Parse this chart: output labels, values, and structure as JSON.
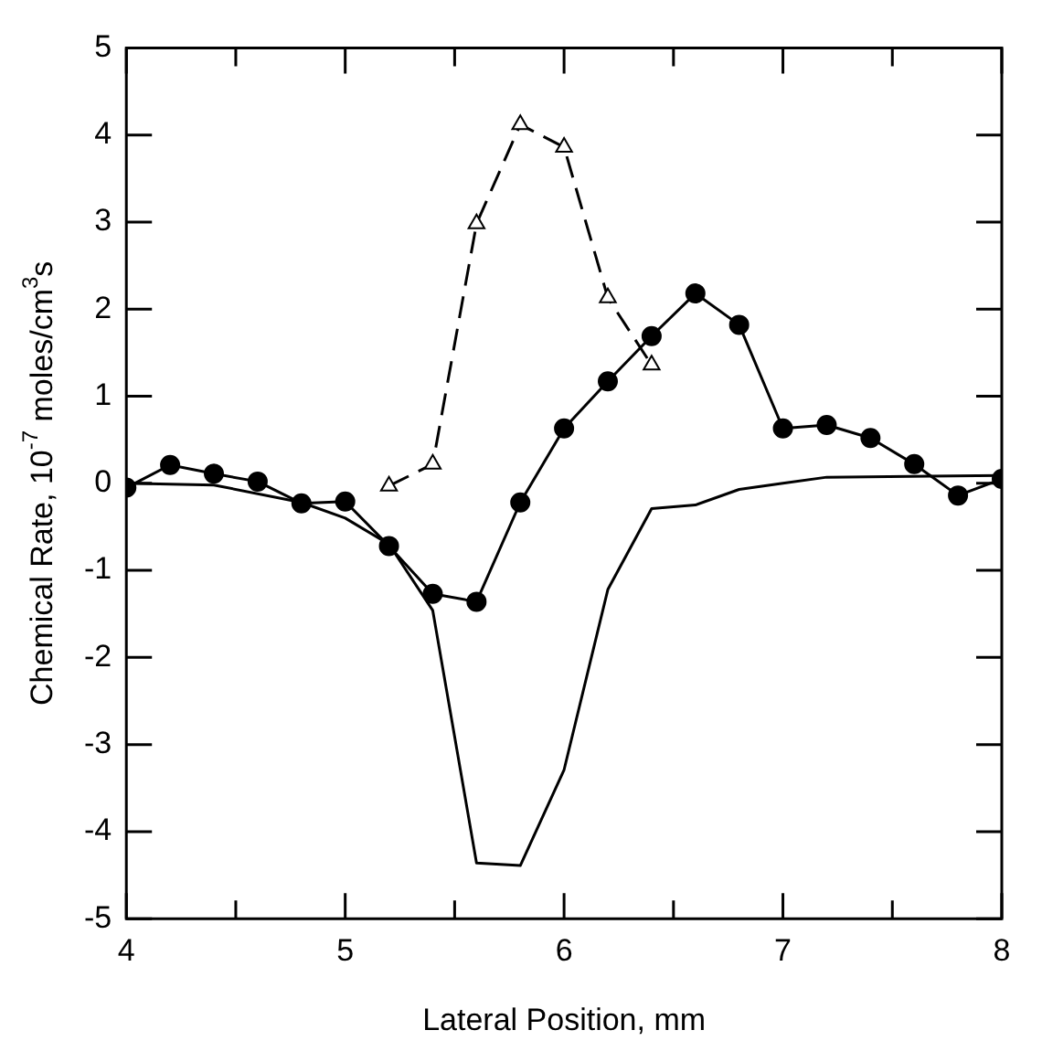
{
  "chart_data": {
    "type": "line",
    "xlabel": "Lateral Position, mm",
    "ylabel": "Chemical Rate, 10$^{-7}$ moles/cm$^{3}$s",
    "xlim": [
      4,
      8
    ],
    "xticks": [
      4,
      {
        "value": 4.5,
        "label": null
      },
      5,
      {
        "value": 5.5,
        "label": null
      },
      6,
      {
        "value": 6.5,
        "label": null
      },
      7,
      {
        "value": 7.5,
        "label": null
      },
      8
    ],
    "ylim": [
      -5,
      5
    ],
    "yticks": [
      -5,
      -4,
      -3,
      -2,
      -1,
      0,
      1,
      2,
      3,
      4,
      5
    ],
    "grid": false,
    "legend": false,
    "series": [
      {
        "color": "#000000",
        "marker": "circle",
        "line_style": "solid",
        "x": [
          4.0,
          4.2,
          4.4,
          4.6,
          4.8,
          5.0,
          5.2,
          5.4,
          5.6,
          5.8,
          6.0,
          6.2,
          6.4,
          6.6,
          6.8,
          7.0,
          7.2,
          7.4,
          7.6,
          7.8,
          8.0
        ],
        "values": [
          -0.05,
          0.21,
          0.11,
          0.02,
          -0.23,
          -0.21,
          -0.72,
          -1.27,
          -1.36,
          -0.22,
          0.63,
          1.17,
          1.69,
          2.18,
          1.82,
          0.63,
          0.67,
          0.52,
          0.22,
          -0.14,
          0.05
        ]
      },
      {
        "color": "#000000",
        "marker": "triangle",
        "line_style": "dashed",
        "x": [
          5.2,
          5.4,
          5.6,
          5.8,
          6.0,
          6.2,
          6.4
        ],
        "values": [
          -0.03,
          0.22,
          2.98,
          4.12,
          3.86,
          2.13,
          1.36
        ]
      },
      {
        "color": "#000000",
        "marker": "none",
        "line_style": "solid",
        "x": [
          4.0,
          4.4,
          4.8,
          5.0,
          5.2,
          5.4,
          5.6,
          5.8,
          6.0,
          6.2,
          6.4,
          6.6,
          6.8,
          7.0,
          7.2,
          8.0
        ],
        "values": [
          0.0,
          -0.02,
          -0.22,
          -0.4,
          -0.7,
          -1.46,
          -4.36,
          -4.39,
          -3.29,
          -1.22,
          -0.29,
          -0.25,
          -0.07,
          0.0,
          0.07,
          0.09
        ]
      }
    ]
  }
}
